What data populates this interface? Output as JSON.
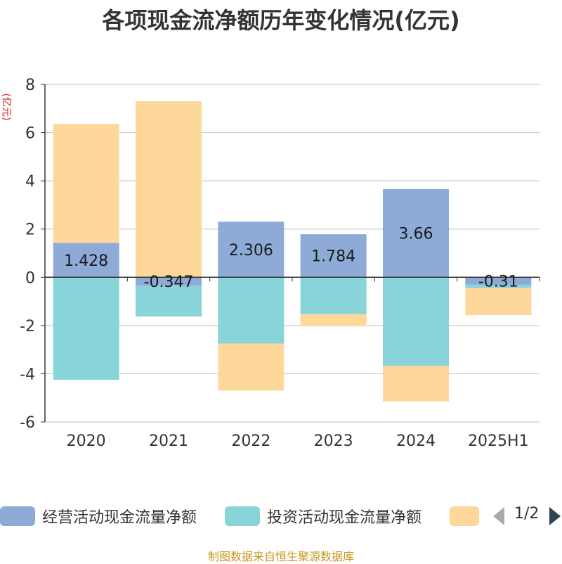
{
  "title": "各项现金流净额历年变化情况(亿元)",
  "unit": "(亿元)",
  "source": "制图数据来自恒生聚源数据库",
  "pager": {
    "label": "1/2"
  },
  "chart_data": {
    "type": "bar",
    "stacked": true,
    "categories": [
      "2020",
      "2021",
      "2022",
      "2023",
      "2024",
      "2025H1"
    ],
    "ylim": [
      -6,
      8
    ],
    "yticks": [
      -6,
      -4,
      -2,
      0,
      2,
      4,
      6,
      8
    ],
    "grid": true,
    "legend_position": "bottom",
    "series": [
      {
        "name": "经营活动现金流量净额",
        "color": "#8eabd8",
        "values": [
          1.428,
          -0.347,
          2.306,
          1.784,
          3.66,
          -0.31
        ],
        "labels": [
          "1.428",
          "-0.347",
          "2.306",
          "1.784",
          "3.66",
          "-0.31"
        ]
      },
      {
        "name": "投资活动现金流量净额",
        "color": "#88d4d8",
        "values": [
          -4.25,
          -1.28,
          -2.75,
          -1.53,
          -3.67,
          -0.14
        ]
      },
      {
        "name": "",
        "color": "#fdd89a",
        "values": [
          4.93,
          7.3,
          -1.95,
          -0.5,
          -1.48,
          -1.12
        ]
      }
    ]
  }
}
